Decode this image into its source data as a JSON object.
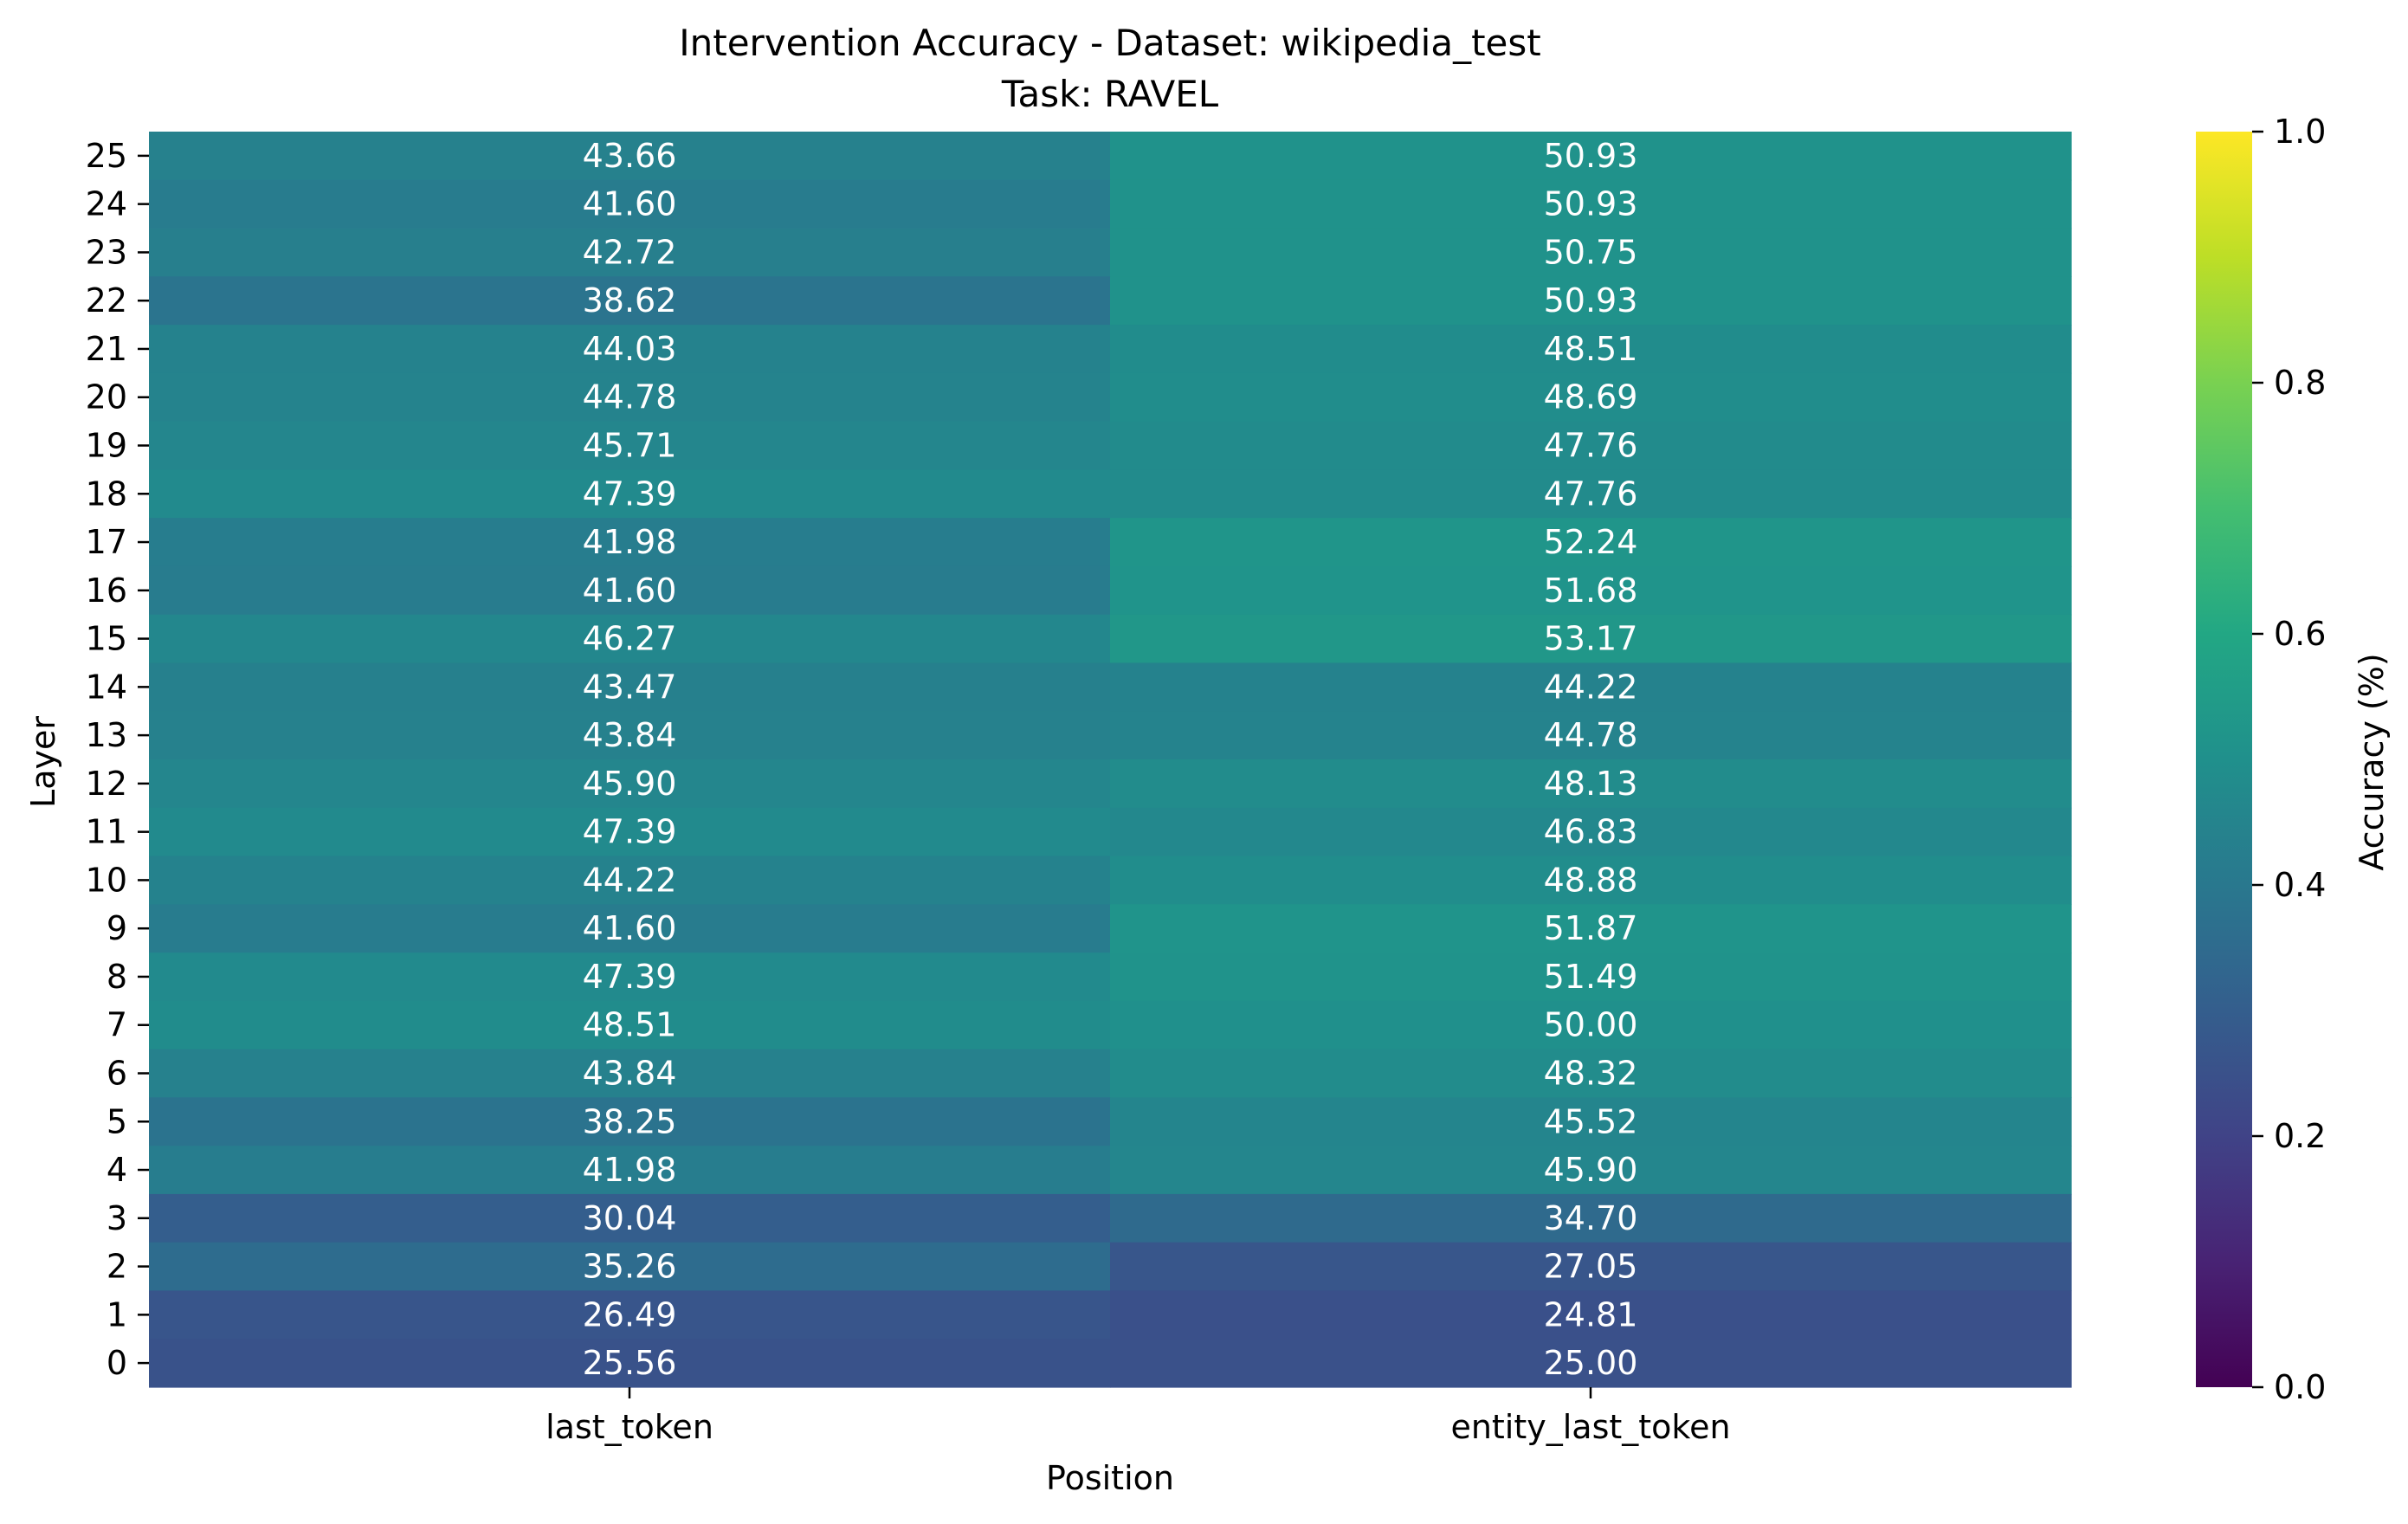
{
  "chart_data": {
    "type": "heatmap",
    "title": "Intervention Accuracy - Dataset: wikipedia_test",
    "subtitle": "Task: RAVEL",
    "xlabel": "Position",
    "ylabel": "Layer",
    "colorbar_label": "Accuracy (%)",
    "colormap": "viridis",
    "vmin": 0.0,
    "vmax": 1.0,
    "colorbar_ticks": [
      "0.0",
      "0.2",
      "0.4",
      "0.6",
      "0.8",
      "1.0"
    ],
    "columns": [
      "last_token",
      "entity_last_token"
    ],
    "rows": [
      {
        "layer": "25",
        "values": [
          43.66,
          50.93
        ],
        "labels": [
          "43.66",
          "50.93"
        ]
      },
      {
        "layer": "24",
        "values": [
          41.6,
          50.93
        ],
        "labels": [
          "41.60",
          "50.93"
        ]
      },
      {
        "layer": "23",
        "values": [
          42.72,
          50.75
        ],
        "labels": [
          "42.72",
          "50.75"
        ]
      },
      {
        "layer": "22",
        "values": [
          38.62,
          50.93
        ],
        "labels": [
          "38.62",
          "50.93"
        ]
      },
      {
        "layer": "21",
        "values": [
          44.03,
          48.51
        ],
        "labels": [
          "44.03",
          "48.51"
        ]
      },
      {
        "layer": "20",
        "values": [
          44.78,
          48.69
        ],
        "labels": [
          "44.78",
          "48.69"
        ]
      },
      {
        "layer": "19",
        "values": [
          45.71,
          47.76
        ],
        "labels": [
          "45.71",
          "47.76"
        ]
      },
      {
        "layer": "18",
        "values": [
          47.39,
          47.76
        ],
        "labels": [
          "47.39",
          "47.76"
        ]
      },
      {
        "layer": "17",
        "values": [
          41.98,
          52.24
        ],
        "labels": [
          "41.98",
          "52.24"
        ]
      },
      {
        "layer": "16",
        "values": [
          41.6,
          51.68
        ],
        "labels": [
          "41.60",
          "51.68"
        ]
      },
      {
        "layer": "15",
        "values": [
          46.27,
          53.17
        ],
        "labels": [
          "46.27",
          "53.17"
        ]
      },
      {
        "layer": "14",
        "values": [
          43.47,
          44.22
        ],
        "labels": [
          "43.47",
          "44.22"
        ]
      },
      {
        "layer": "13",
        "values": [
          43.84,
          44.78
        ],
        "labels": [
          "43.84",
          "44.78"
        ]
      },
      {
        "layer": "12",
        "values": [
          45.9,
          48.13
        ],
        "labels": [
          "45.90",
          "48.13"
        ]
      },
      {
        "layer": "11",
        "values": [
          47.39,
          46.83
        ],
        "labels": [
          "47.39",
          "46.83"
        ]
      },
      {
        "layer": "10",
        "values": [
          44.22,
          48.88
        ],
        "labels": [
          "44.22",
          "48.88"
        ]
      },
      {
        "layer": "9",
        "values": [
          41.6,
          51.87
        ],
        "labels": [
          "41.60",
          "51.87"
        ]
      },
      {
        "layer": "8",
        "values": [
          47.39,
          51.49
        ],
        "labels": [
          "47.39",
          "51.49"
        ]
      },
      {
        "layer": "7",
        "values": [
          48.51,
          50.0
        ],
        "labels": [
          "48.51",
          "50.00"
        ]
      },
      {
        "layer": "6",
        "values": [
          43.84,
          48.32
        ],
        "labels": [
          "43.84",
          "48.32"
        ]
      },
      {
        "layer": "5",
        "values": [
          38.25,
          45.52
        ],
        "labels": [
          "38.25",
          "45.52"
        ]
      },
      {
        "layer": "4",
        "values": [
          41.98,
          45.9
        ],
        "labels": [
          "41.98",
          "45.90"
        ]
      },
      {
        "layer": "3",
        "values": [
          30.04,
          34.7
        ],
        "labels": [
          "30.04",
          "34.70"
        ]
      },
      {
        "layer": "2",
        "values": [
          35.26,
          27.05
        ],
        "labels": [
          "35.26",
          "27.05"
        ]
      },
      {
        "layer": "1",
        "values": [
          26.49,
          24.81
        ],
        "labels": [
          "26.49",
          "24.81"
        ]
      },
      {
        "layer": "0",
        "values": [
          25.56,
          25.0
        ],
        "labels": [
          "25.56",
          "25.00"
        ]
      }
    ]
  }
}
